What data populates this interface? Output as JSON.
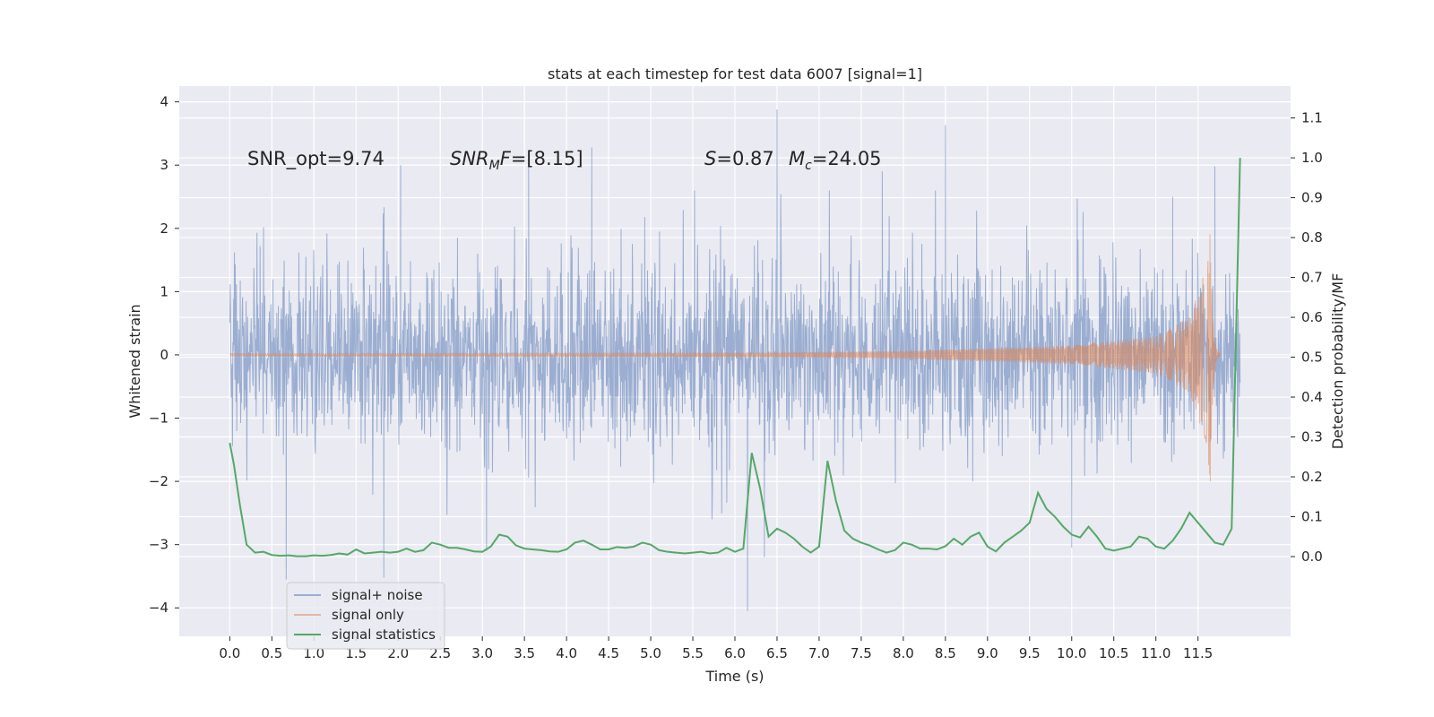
{
  "chart_data": {
    "type": "line",
    "title": "stats at each timestep for test data 6007 [signal=1]",
    "xlabel": "Time (s)",
    "ylabel_left": "Whitened strain",
    "ylabel_right": "Detection probability/MF",
    "xlim": [
      -0.6,
      12.6
    ],
    "ylim_left": [
      -4.45,
      4.25
    ],
    "ylim_right": [
      -0.2,
      1.18
    ],
    "x_ticks": [
      "0.0",
      "0.5",
      "1.0",
      "1.5",
      "2.0",
      "2.5",
      "3.0",
      "3.5",
      "4.0",
      "4.5",
      "5.0",
      "5.5",
      "6.0",
      "6.5",
      "7.0",
      "7.5",
      "8.0",
      "8.5",
      "9.0",
      "9.5",
      "10.0",
      "10.5",
      "11.0",
      "11.5"
    ],
    "y_ticks_left": [
      "4",
      "3",
      "2",
      "1",
      "0",
      "−1",
      "−2",
      "−3",
      "−4"
    ],
    "y_ticks_right": [
      "1.1",
      "1.0",
      "0.9",
      "0.8",
      "0.7",
      "0.6",
      "0.5",
      "0.4",
      "0.3",
      "0.2",
      "0.1",
      "0.0"
    ],
    "annotations": {
      "snr_opt": "SNR_opt=9.74",
      "snr_mf_name": "SNR",
      "snr_mf_sub": "M",
      "snr_mf_tail": "F",
      "snr_mf_value": "=[8.15]",
      "s_name": "S",
      "s_value": "=0.87",
      "mc_name": "M",
      "mc_sub": "c",
      "mc_value": "=24.05"
    },
    "legend": {
      "position": "lower-left",
      "entries": [
        "signal+ noise",
        "signal only",
        "signal statistics"
      ]
    },
    "colors": {
      "noise": "#4c72b0",
      "signal": "#dd8452",
      "stats": "#55a868",
      "background": "#eaeaf2",
      "grid": "#ffffff"
    },
    "series": [
      {
        "name": "signal+ noise",
        "axis": "left",
        "description": "whitened strain, approximately Gaussian noise with sigma ~0.75 from t=0 to t=12.0 s",
        "t_start": 0.0,
        "t_end": 12.0,
        "spikes": [
          {
            "x": 6.5,
            "y": 3.88
          },
          {
            "x": 8.5,
            "y": 3.63
          },
          {
            "x": 4.3,
            "y": 3.28
          },
          {
            "x": 2.03,
            "y": 3.0
          },
          {
            "x": 3.55,
            "y": 2.98
          },
          {
            "x": 6.15,
            "y": -4.05
          },
          {
            "x": 0.67,
            "y": -3.55
          },
          {
            "x": 1.83,
            "y": -3.52
          },
          {
            "x": 3.05,
            "y": -3.1
          },
          {
            "x": 6.35,
            "y": -3.2
          },
          {
            "x": 10.0,
            "y": -3.05
          },
          {
            "x": 11.7,
            "y": 2.98
          },
          {
            "x": 7.75,
            "y": 2.9
          },
          {
            "x": 11.2,
            "y": 2.5
          }
        ]
      },
      {
        "name": "signal only",
        "axis": "left",
        "description": "chirp signal, amplitude grows toward merger",
        "t_start": 0.0,
        "t_merger": 11.65,
        "amplitude_points": [
          [
            0,
            0.02
          ],
          [
            6,
            0.03
          ],
          [
            8,
            0.06
          ],
          [
            10,
            0.15
          ],
          [
            11,
            0.3
          ],
          [
            11.4,
            0.6
          ],
          [
            11.6,
            1.4
          ],
          [
            11.65,
            2.05
          ]
        ]
      },
      {
        "name": "signal statistics",
        "axis": "right",
        "x": [
          0.0,
          0.05,
          0.12,
          0.2,
          0.3,
          0.4,
          0.5,
          0.6,
          0.7,
          0.8,
          0.9,
          1.0,
          1.1,
          1.2,
          1.3,
          1.4,
          1.5,
          1.6,
          1.7,
          1.8,
          1.9,
          2.0,
          2.1,
          2.2,
          2.3,
          2.4,
          2.5,
          2.6,
          2.7,
          2.8,
          2.9,
          3.0,
          3.1,
          3.2,
          3.3,
          3.4,
          3.5,
          3.6,
          3.7,
          3.8,
          3.9,
          4.0,
          4.1,
          4.2,
          4.3,
          4.4,
          4.5,
          4.6,
          4.7,
          4.8,
          4.9,
          5.0,
          5.1,
          5.2,
          5.3,
          5.4,
          5.5,
          5.6,
          5.7,
          5.8,
          5.9,
          6.0,
          6.1,
          6.2,
          6.3,
          6.4,
          6.5,
          6.6,
          6.7,
          6.8,
          6.9,
          7.0,
          7.1,
          7.2,
          7.3,
          7.4,
          7.5,
          7.6,
          7.7,
          7.8,
          7.9,
          8.0,
          8.1,
          8.2,
          8.3,
          8.4,
          8.5,
          8.6,
          8.7,
          8.8,
          8.9,
          9.0,
          9.1,
          9.2,
          9.3,
          9.4,
          9.5,
          9.6,
          9.7,
          9.8,
          9.9,
          10.0,
          10.1,
          10.2,
          10.3,
          10.4,
          10.5,
          10.6,
          10.7,
          10.8,
          10.9,
          11.0,
          11.1,
          11.2,
          11.3,
          11.4,
          11.5,
          11.6,
          11.7,
          11.8,
          11.9,
          12.0
        ],
        "y": [
          0.285,
          0.23,
          0.13,
          0.03,
          0.01,
          0.012,
          0.004,
          0.002,
          0.003,
          0.001,
          0.001,
          0.003,
          0.002,
          0.004,
          0.008,
          0.005,
          0.018,
          0.008,
          0.01,
          0.012,
          0.01,
          0.012,
          0.02,
          0.012,
          0.016,
          0.035,
          0.03,
          0.022,
          0.022,
          0.018,
          0.013,
          0.012,
          0.025,
          0.055,
          0.05,
          0.028,
          0.02,
          0.018,
          0.016,
          0.013,
          0.012,
          0.018,
          0.035,
          0.04,
          0.03,
          0.018,
          0.018,
          0.024,
          0.022,
          0.025,
          0.035,
          0.03,
          0.016,
          0.012,
          0.01,
          0.008,
          0.01,
          0.012,
          0.008,
          0.01,
          0.022,
          0.012,
          0.02,
          0.26,
          0.17,
          0.05,
          0.07,
          0.06,
          0.045,
          0.025,
          0.01,
          0.025,
          0.24,
          0.14,
          0.065,
          0.045,
          0.035,
          0.028,
          0.018,
          0.01,
          0.016,
          0.035,
          0.03,
          0.02,
          0.02,
          0.018,
          0.026,
          0.045,
          0.03,
          0.05,
          0.06,
          0.025,
          0.013,
          0.035,
          0.05,
          0.065,
          0.085,
          0.16,
          0.12,
          0.1,
          0.075,
          0.055,
          0.048,
          0.075,
          0.05,
          0.02,
          0.015,
          0.02,
          0.025,
          0.05,
          0.045,
          0.025,
          0.02,
          0.04,
          0.07,
          0.11,
          0.085,
          0.06,
          0.035,
          0.03,
          0.07,
          1.0
        ]
      }
    ]
  }
}
